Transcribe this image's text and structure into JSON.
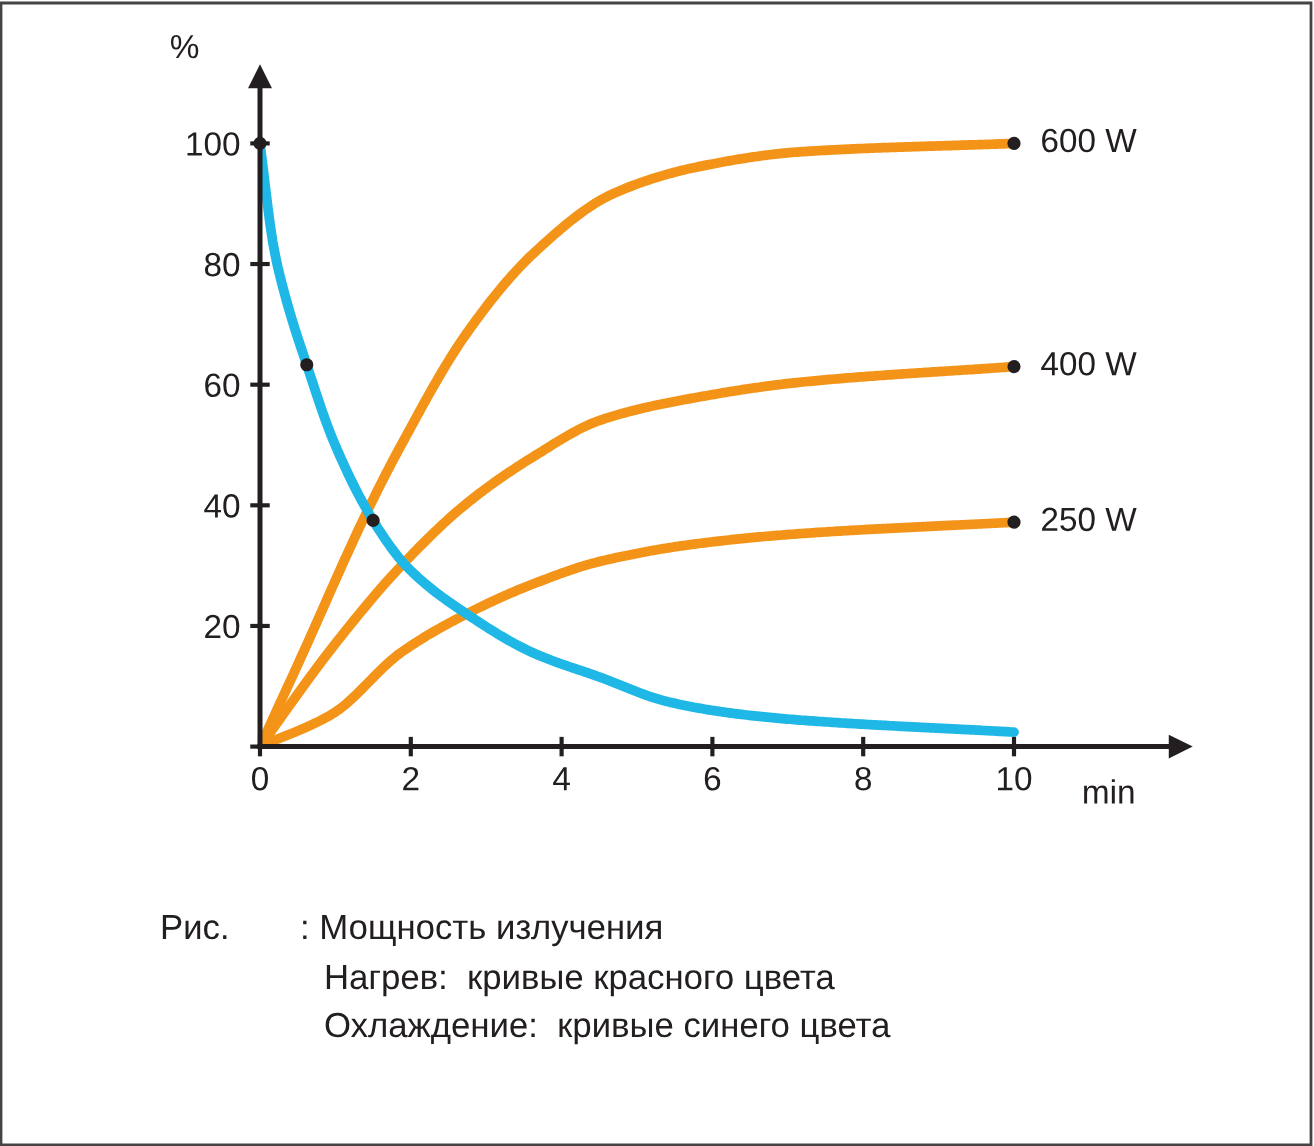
{
  "chart_data": {
    "type": "line",
    "xlabel": "min",
    "ylabel": "%",
    "xlim": [
      0,
      12.2
    ],
    "ylim": [
      0,
      111
    ],
    "xticks": [
      0,
      2,
      4,
      6,
      8,
      10
    ],
    "yticks": [
      {
        "value": 0,
        "label": null
      },
      20,
      40,
      60,
      80,
      100
    ],
    "grid": false,
    "legend": false,
    "marker": "none",
    "line_style": "solid",
    "series": [
      {
        "name": "600 W",
        "color": "#f39419",
        "x": [
          0,
          0.53,
          1.41,
          1.86,
          2.74,
          3.63,
          4.69,
          5.84,
          7.16,
          10
        ],
        "values": [
          0,
          14.4,
          38.7,
          49.7,
          68.5,
          81.8,
          91.7,
          96.2,
          98.6,
          100
        ]
      },
      {
        "name": "400 W",
        "color": "#f39419",
        "x": [
          0,
          0.97,
          1.86,
          2.74,
          3.63,
          4.51,
          5.84,
          7.16,
          10
        ],
        "values": [
          0,
          16.6,
          29.8,
          40.3,
          48.1,
          54.1,
          58,
          60.4,
          63
        ]
      },
      {
        "name": "250 W",
        "color": "#f39419",
        "x": [
          0,
          0.97,
          1.86,
          2.74,
          3.63,
          4.51,
          5.84,
          7.16,
          10
        ],
        "values": [
          0,
          5.5,
          15.5,
          22,
          27,
          30.7,
          33.7,
          35.3,
          37.2
        ]
      },
      {
        "color": "#1fb8e6",
        "x": [
          0,
          0.18,
          0.35,
          0.62,
          0.97,
          1.5,
          1.95,
          2.74,
          3.63,
          4.51,
          5.39,
          6.28,
          7.16,
          10
        ],
        "values": [
          100,
          82.9,
          74,
          63.3,
          50.8,
          37.5,
          29.8,
          22,
          15.5,
          11.5,
          7.5,
          5.5,
          4.4,
          2.4
        ]
      },
      {
        "type": "scatter",
        "marker": "circle",
        "color": "#231f20",
        "x": [
          0,
          0.62,
          1.5,
          10,
          10,
          10
        ],
        "values": [
          100,
          63.3,
          37.5,
          100,
          63,
          37.2
        ]
      }
    ],
    "annotations": [
      "Рис.",
      ": Мощность излучения",
      "Нагрев:  кривые красного цвета",
      "Охлаждение:  кривые синего цвета"
    ]
  }
}
